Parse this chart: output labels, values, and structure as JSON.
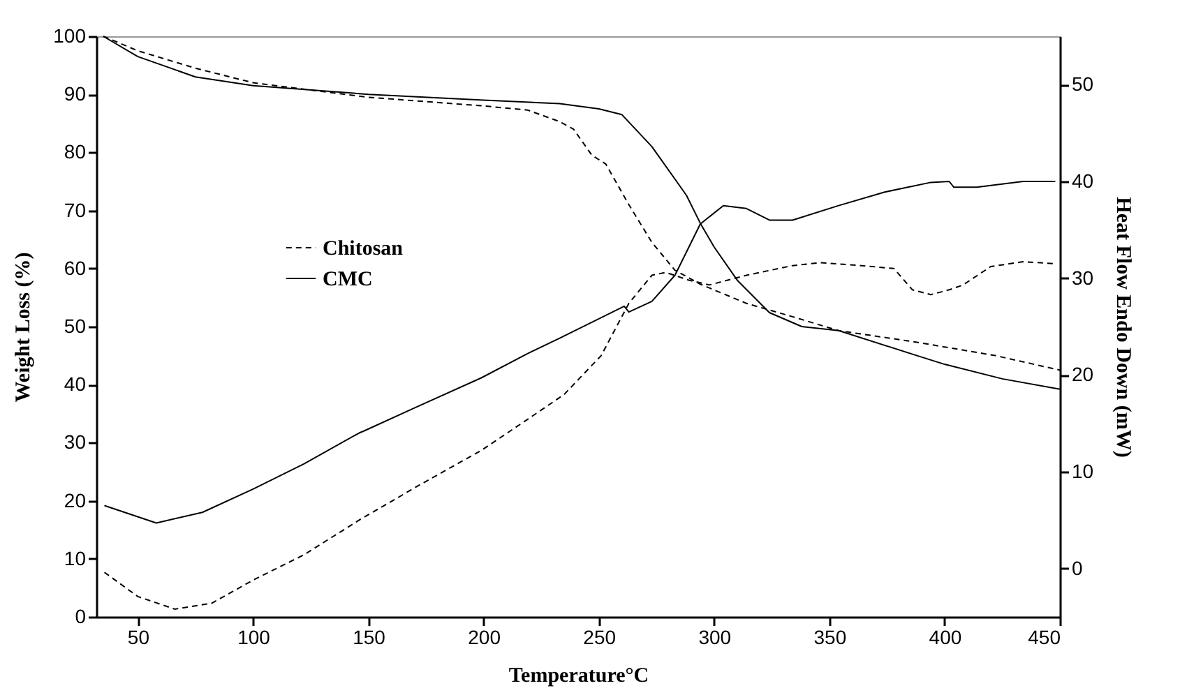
{
  "chart_data": {
    "type": "line",
    "xlabel": "Temperature°C",
    "ylabel": "Weight Loss (%)",
    "y2label": "Heat Flow Endo Down (mW)",
    "xlim": [
      32,
      450
    ],
    "xticks": [
      50,
      100,
      150,
      200,
      250,
      300,
      350,
      400,
      450
    ],
    "ylim": [
      0,
      100
    ],
    "yticks": [
      0,
      10,
      20,
      30,
      40,
      50,
      60,
      70,
      80,
      90,
      100
    ],
    "y2lim": [
      -5,
      55
    ],
    "y2ticks": [
      0,
      10,
      20,
      30,
      40,
      50
    ],
    "legend": "left",
    "grid": false,
    "series": [
      {
        "name": "Chitosan",
        "color": "#000000",
        "line_style": "dashed",
        "x": [
          35,
          50,
          75,
          100,
          150,
          200,
          219,
          233,
          239,
          247,
          253,
          263,
          273,
          283,
          294,
          314,
          334,
          354,
          388,
          422,
          450
        ],
        "values": [
          100,
          97.5,
          94.5,
          92,
          89.5,
          88,
          87.3,
          85.3,
          84,
          79.5,
          78,
          71,
          64.5,
          59.7,
          57.3,
          54,
          51.7,
          49.3,
          47.3,
          45,
          42.5
        ]
      },
      {
        "name": "CMC",
        "color": "#000000",
        "line_style": "solid",
        "x": [
          35,
          50,
          75,
          100,
          150,
          200,
          233,
          250,
          260,
          273,
          288,
          294,
          300,
          310,
          324,
          338,
          354,
          388,
          400,
          425,
          450
        ],
        "values": [
          100,
          96.5,
          93,
          91.5,
          90,
          89,
          88.4,
          87.5,
          86.5,
          81,
          72.6,
          67.8,
          63.7,
          58,
          52.4,
          50,
          49.3,
          45,
          43.5,
          41,
          39.2
        ]
      },
      {
        "color": "#000000",
        "line_style": "dashed",
        "axis": "y2",
        "x": [
          35.5,
          50,
          66,
          82,
          100,
          122,
          146,
          172,
          199,
          219,
          235,
          251,
          263,
          273,
          279,
          289,
          298,
          314,
          334,
          346,
          364,
          378,
          386,
          394,
          402,
          408,
          420,
          434,
          448
        ],
        "values": [
          -0.4,
          -2.9,
          -4.2,
          -3.6,
          -1.2,
          1.4,
          5,
          8.6,
          12.2,
          15.4,
          18,
          22,
          27.4,
          30.3,
          30.6,
          29.8,
          29.3,
          30.3,
          31.3,
          31.6,
          31.3,
          31,
          28.8,
          28.3,
          28.8,
          29.3,
          31.2,
          31.7,
          31.5
        ]
      },
      {
        "color": "#000000",
        "line_style": "solid",
        "axis": "y2",
        "x": [
          35.5,
          58,
          78,
          100,
          122,
          146,
          148,
          172,
          199,
          219,
          233,
          261,
          263,
          273,
          283,
          294,
          304,
          314,
          324,
          334,
          354,
          374,
          394,
          402,
          404,
          414,
          434,
          448
        ],
        "values": [
          6.5,
          4.7,
          5.8,
          8.2,
          10.8,
          14,
          14.2,
          16.8,
          19.7,
          22.2,
          23.8,
          27.1,
          26.5,
          27.6,
          30.3,
          35.6,
          37.5,
          37.2,
          36,
          36,
          37.5,
          38.9,
          39.9,
          40,
          39.4,
          39.4,
          40,
          40
        ]
      }
    ]
  }
}
